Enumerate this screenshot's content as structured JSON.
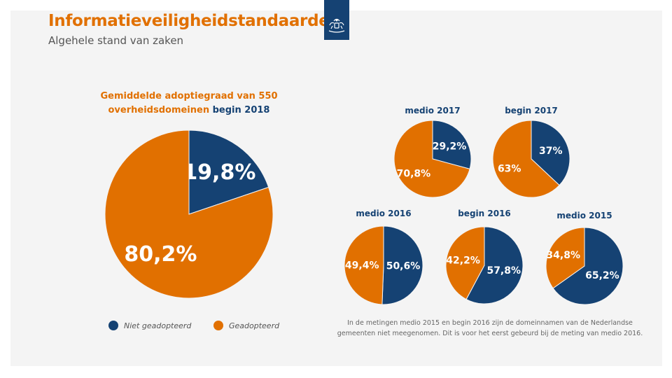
{
  "header": {
    "title": "Informatieveiligheidstandaarden",
    "subtitle": "Algehele stand van zaken",
    "logo": "rijksoverheid-coat-of-arms-icon"
  },
  "colors": {
    "adopted": "#e17000",
    "not_adopted": "#154273",
    "panel": "#f4f4f4"
  },
  "main_caption": {
    "part1": "Gemiddelde adoptiegraad van 550 overheidsdomeinen",
    "part2": "begin 2018"
  },
  "legend": {
    "not_adopted": "Niet geadopteerd",
    "adopted": "Geadopteerd"
  },
  "footnote": "In de metingen medio 2015 en begin 2016 zijn de domeinnamen van de Nederlandse gemeenten niet meegenomen. Dit is voor het eerst gebeurd bij de meting van medio 2016.",
  "chart_data": [
    {
      "type": "pie",
      "title": "Gemiddelde adoptiegraad van 550 overheidsdomeinen begin 2018",
      "categories": [
        "Niet geadopteerd",
        "Geadopteerd"
      ],
      "values": [
        19.8,
        80.2
      ],
      "labels": [
        "19,8%",
        "80,2%"
      ]
    },
    {
      "type": "pie",
      "title": "medio 2017",
      "categories": [
        "Niet geadopteerd",
        "Geadopteerd"
      ],
      "values": [
        29.2,
        70.8
      ],
      "labels": [
        "29,2%",
        "70,8%"
      ]
    },
    {
      "type": "pie",
      "title": "begin 2017",
      "categories": [
        "Niet geadopteerd",
        "Geadopteerd"
      ],
      "values": [
        37,
        63
      ],
      "labels": [
        "37%",
        "63%"
      ]
    },
    {
      "type": "pie",
      "title": "medio 2016",
      "categories": [
        "Niet geadopteerd",
        "Geadopteerd"
      ],
      "values": [
        50.6,
        49.4
      ],
      "labels": [
        "50,6%",
        "49,4%"
      ]
    },
    {
      "type": "pie",
      "title": "begin 2016",
      "categories": [
        "Niet geadopteerd",
        "Geadopteerd"
      ],
      "values": [
        57.8,
        42.2
      ],
      "labels": [
        "57,8%",
        "42,2%"
      ]
    },
    {
      "type": "pie",
      "title": "medio 2015",
      "categories": [
        "Niet geadopteerd",
        "Geadopteerd"
      ],
      "values": [
        65.2,
        34.8
      ],
      "labels": [
        "65,2%",
        "34,8%"
      ]
    }
  ]
}
